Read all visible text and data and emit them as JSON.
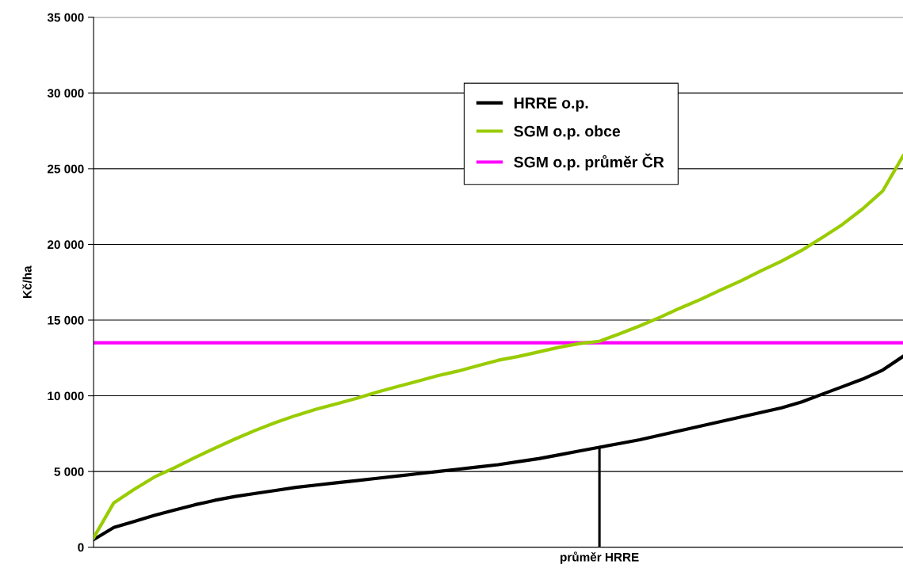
{
  "chart_data": {
    "type": "line",
    "ylabel": "Kč/ha",
    "categories": [
      null,
      null,
      null,
      null,
      null,
      null,
      null,
      null,
      null,
      null,
      null,
      null,
      null,
      null,
      null,
      null,
      null,
      null,
      null,
      null,
      null,
      null,
      null,
      null,
      null,
      null,
      null,
      null,
      null,
      null,
      null,
      null,
      null,
      null,
      null,
      null,
      null,
      null,
      null,
      null,
      null
    ],
    "ylim": [
      0,
      35000
    ],
    "yticks": [
      {
        "value": 0,
        "label": "0"
      },
      {
        "value": 5000,
        "label": "5 000"
      },
      {
        "value": 10000,
        "label": "10 000"
      },
      {
        "value": 15000,
        "label": "15 000"
      },
      {
        "value": 20000,
        "label": "20 000"
      },
      {
        "value": 25000,
        "label": "25 000"
      },
      {
        "value": 30000,
        "label": "30 000"
      },
      {
        "value": 35000,
        "label": "35 000"
      }
    ],
    "grid": "y",
    "legend": "top",
    "marker": "none",
    "line_style": "solid",
    "annotations": [
      "průměr HRRE"
    ],
    "series": [
      {
        "name": "HRRE o.p.",
        "color": "#000000",
        "values": [
          500,
          1300,
          1700,
          2100,
          2450,
          2800,
          3100,
          3350,
          3550,
          3750,
          3950,
          4100,
          4250,
          4400,
          4550,
          4700,
          4850,
          5000,
          5150,
          5300,
          5450,
          5650,
          5850,
          6100,
          6350,
          6600,
          6850,
          7100,
          7400,
          7700,
          8000,
          8300,
          8600,
          8900,
          9200,
          9600,
          10100,
          10600,
          11100,
          11700,
          12600
        ]
      },
      {
        "name": "SGM o.p. obce",
        "color": "#99cc00",
        "values": [
          620,
          2930,
          3810,
          4630,
          5250,
          5920,
          6540,
          7150,
          7720,
          8240,
          8700,
          9110,
          9470,
          9830,
          10240,
          10600,
          10960,
          11320,
          11630,
          11990,
          12350,
          12600,
          12900,
          13200,
          13450,
          13600,
          14100,
          14620,
          15190,
          15800,
          16370,
          16990,
          17600,
          18270,
          18890,
          19610,
          20440,
          21310,
          22340,
          23530,
          25840
        ]
      },
      {
        "type": "bar",
        "color": "#000000",
        "values": [
          null,
          null,
          null,
          null,
          null,
          null,
          null,
          null,
          null,
          null,
          null,
          null,
          null,
          null,
          null,
          null,
          null,
          null,
          null,
          null,
          null,
          null,
          null,
          null,
          null,
          6600,
          null,
          null,
          null,
          null,
          null,
          null,
          null,
          null,
          null,
          null,
          null,
          null,
          null,
          null,
          null
        ]
      }
    ],
    "ref_lines": [
      {
        "axis": "y",
        "value": 13500,
        "label": "SGM o.p. průměr ČR",
        "color": "#ff00ff",
        "line_style": "solid"
      }
    ]
  }
}
